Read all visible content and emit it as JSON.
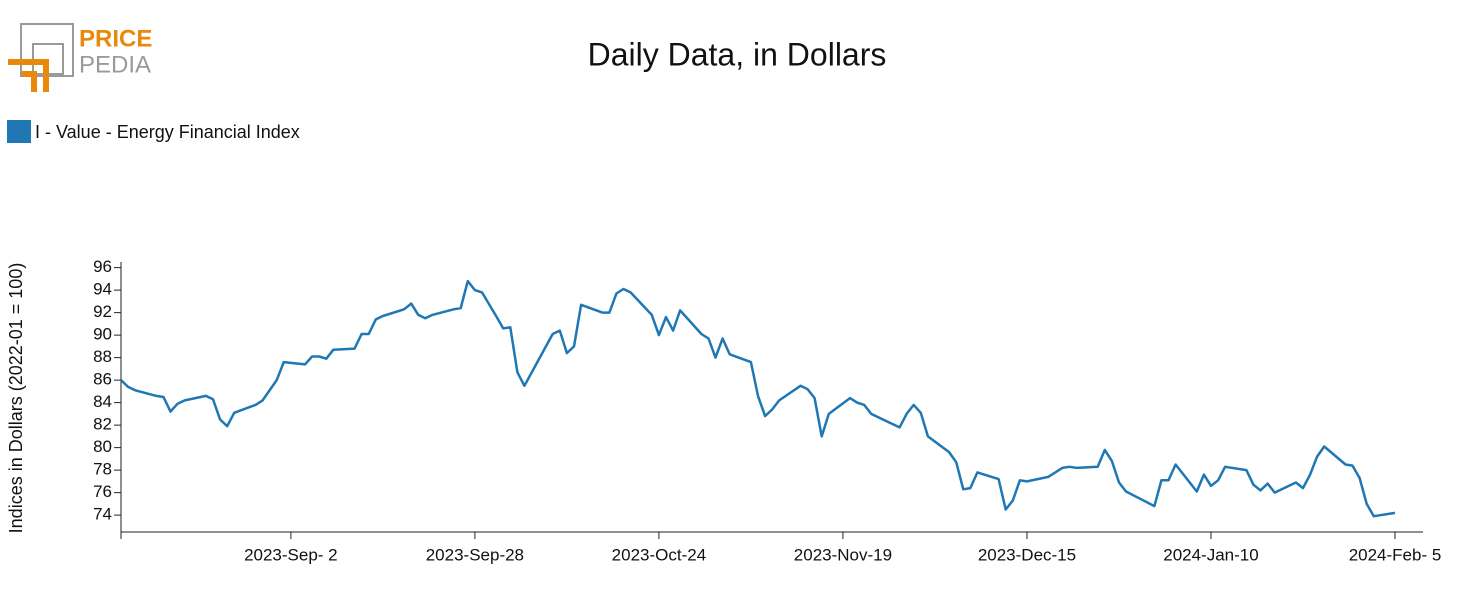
{
  "logo": {
    "top": "PRICE",
    "bottom": "PEDIA"
  },
  "chart_data": {
    "type": "line",
    "title": "Daily Data, in Dollars",
    "y_label": "Indices in Dollars (2022-01 = 100)",
    "xlim": [
      "2023-08-09",
      "2024-02-05"
    ],
    "xticks": [
      {
        "value": "2023-09-02",
        "label": "2023-Sep- 2"
      },
      {
        "value": "2023-09-28",
        "label": "2023-Sep-28"
      },
      {
        "value": "2023-10-24",
        "label": "2023-Oct-24"
      },
      {
        "value": "2023-11-19",
        "label": "2023-Nov-19"
      },
      {
        "value": "2023-12-15",
        "label": "2023-Dec-15"
      },
      {
        "value": "2024-01-10",
        "label": "2024-Jan-10"
      },
      {
        "value": "2024-02-05",
        "label": "2024-Feb- 5"
      }
    ],
    "ylim": [
      72.5,
      96.5
    ],
    "yticks": [
      74,
      76,
      78,
      80,
      82,
      84,
      86,
      88,
      90,
      92,
      94,
      96
    ],
    "x": [
      "2023-08-09",
      "2023-08-10",
      "2023-08-11",
      "2023-08-14",
      "2023-08-15",
      "2023-08-16",
      "2023-08-17",
      "2023-08-18",
      "2023-08-21",
      "2023-08-22",
      "2023-08-23",
      "2023-08-24",
      "2023-08-25",
      "2023-08-28",
      "2023-08-29",
      "2023-08-31",
      "2023-09-01",
      "2023-09-04",
      "2023-09-05",
      "2023-09-06",
      "2023-09-07",
      "2023-09-08",
      "2023-09-11",
      "2023-09-12",
      "2023-09-13",
      "2023-09-14",
      "2023-09-15",
      "2023-09-18",
      "2023-09-19",
      "2023-09-20",
      "2023-09-21",
      "2023-09-22",
      "2023-09-25",
      "2023-09-26",
      "2023-09-27",
      "2023-09-28",
      "2023-09-29",
      "2023-10-01",
      "2023-10-02",
      "2023-10-03",
      "2023-10-04",
      "2023-10-05",
      "2023-10-09",
      "2023-10-10",
      "2023-10-11",
      "2023-10-12",
      "2023-10-13",
      "2023-10-16",
      "2023-10-17",
      "2023-10-18",
      "2023-10-19",
      "2023-10-20",
      "2023-10-23",
      "2023-10-24",
      "2023-10-25",
      "2023-10-26",
      "2023-10-27",
      "2023-10-30",
      "2023-10-31",
      "2023-11-01",
      "2023-11-02",
      "2023-11-03",
      "2023-11-06",
      "2023-11-07",
      "2023-11-08",
      "2023-11-09",
      "2023-11-10",
      "2023-11-13",
      "2023-11-14",
      "2023-11-15",
      "2023-11-16",
      "2023-11-17",
      "2023-11-20",
      "2023-11-21",
      "2023-11-22",
      "2023-11-23",
      "2023-11-27",
      "2023-11-28",
      "2023-11-29",
      "2023-11-30",
      "2023-12-01",
      "2023-12-04",
      "2023-12-05",
      "2023-12-06",
      "2023-12-07",
      "2023-12-08",
      "2023-12-11",
      "2023-12-12",
      "2023-12-13",
      "2023-12-14",
      "2023-12-15",
      "2023-12-18",
      "2023-12-19",
      "2023-12-20",
      "2023-12-21",
      "2023-12-22",
      "2023-12-25",
      "2023-12-26",
      "2023-12-27",
      "2023-12-28",
      "2023-12-29",
      "2024-01-02",
      "2024-01-03",
      "2024-01-04",
      "2024-01-05",
      "2024-01-08",
      "2024-01-09",
      "2024-01-10",
      "2024-01-11",
      "2024-01-12",
      "2024-01-15",
      "2024-01-16",
      "2024-01-17",
      "2024-01-18",
      "2024-01-19",
      "2024-01-22",
      "2024-01-23",
      "2024-01-24",
      "2024-01-25",
      "2024-01-26",
      "2024-01-29",
      "2024-01-30",
      "2024-01-31",
      "2024-02-01",
      "2024-02-02",
      "2024-02-05"
    ],
    "series": [
      {
        "name": "I - Value - Energy Financial Index",
        "color": "#1f77b4",
        "values": [
          86.0,
          85.4,
          85.1,
          84.6,
          84.5,
          83.2,
          83.9,
          84.2,
          84.6,
          84.3,
          82.5,
          81.9,
          83.1,
          83.8,
          84.2,
          86.0,
          87.6,
          87.4,
          88.1,
          88.1,
          87.9,
          88.7,
          88.8,
          90.1,
          90.1,
          91.4,
          91.7,
          92.3,
          92.8,
          91.8,
          91.5,
          91.8,
          92.3,
          92.4,
          94.8,
          94.0,
          93.8,
          91.7,
          90.6,
          90.7,
          86.7,
          85.5,
          90.1,
          90.4,
          88.4,
          89.0,
          92.7,
          92.0,
          92.0,
          93.7,
          94.1,
          93.8,
          91.8,
          90.0,
          91.6,
          90.4,
          92.2,
          90.1,
          89.7,
          88.0,
          89.7,
          88.3,
          87.6,
          84.6,
          82.8,
          83.4,
          84.2,
          85.5,
          85.2,
          84.4,
          81.0,
          83.0,
          84.4,
          84.0,
          83.8,
          83.0,
          81.8,
          83.0,
          83.8,
          83.1,
          81.0,
          79.6,
          78.7,
          76.3,
          76.4,
          77.8,
          77.2,
          74.5,
          75.3,
          77.1,
          77.0,
          77.4,
          77.8,
          78.2,
          78.3,
          78.2,
          78.3,
          79.8,
          78.8,
          76.9,
          76.1,
          74.8,
          77.1,
          77.1,
          78.5,
          76.1,
          77.6,
          76.6,
          77.1,
          78.3,
          78.0,
          76.7,
          76.2,
          76.8,
          76.0,
          76.9,
          76.4,
          77.6,
          79.2,
          80.1,
          78.5,
          78.4,
          77.3,
          75.0,
          73.9,
          74.2
        ]
      }
    ]
  }
}
